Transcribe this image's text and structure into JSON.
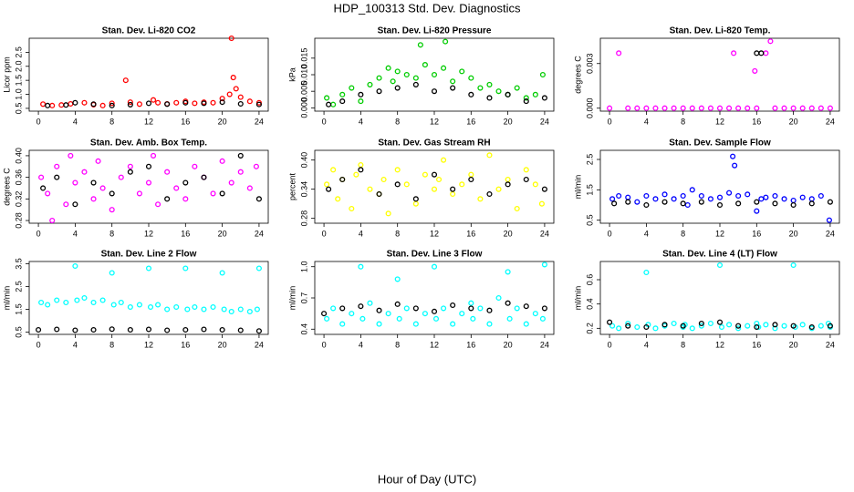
{
  "title": "HDP_100313  Std. Dev. Diagnostics",
  "xlabel": "Hour of Day (UTC)",
  "chart_data": [
    {
      "type": "scatter",
      "title": "Stan. Dev. Li-820 CO2",
      "ylabel": "Licor ppm",
      "xlim": [
        -1,
        25
      ],
      "xticks": [
        0,
        4,
        8,
        12,
        16,
        20,
        24
      ],
      "ylim": [
        0.4,
        3.0
      ],
      "yticks": [
        0.5,
        {
          "value": 1,
          "label": "1.0"
        },
        1.5,
        {
          "value": 2,
          "label": "2.0"
        },
        2.5
      ],
      "series": [
        {
          "color": "#ff0000",
          "x": [
            0.5,
            1.5,
            2.5,
            3.5,
            5,
            6,
            7,
            8,
            9.5,
            10,
            11,
            12.5,
            13,
            14,
            15,
            16,
            17,
            18,
            19,
            20,
            20.8,
            21,
            21.2,
            21.5,
            22,
            23,
            24
          ],
          "values": [
            0.65,
            0.6,
            0.62,
            0.66,
            0.7,
            0.63,
            0.6,
            0.68,
            1.5,
            0.72,
            0.65,
            0.8,
            0.7,
            0.66,
            0.7,
            0.75,
            0.68,
            0.72,
            0.7,
            0.85,
            1.0,
            3.0,
            1.6,
            1.2,
            0.9,
            0.75,
            0.7
          ]
        },
        {
          "color": "#000000",
          "x": [
            1,
            3,
            4,
            6,
            8,
            10,
            12,
            14,
            16,
            18,
            20,
            22,
            24
          ],
          "values": [
            0.6,
            0.62,
            0.7,
            0.65,
            0.6,
            0.63,
            0.68,
            0.65,
            0.7,
            0.68,
            0.72,
            0.66,
            0.64
          ]
        }
      ]
    },
    {
      "type": "scatter",
      "title": "Stan. Dev. Li-820 Pressure",
      "ylabel": "kPa",
      "xlim": [
        -1,
        25
      ],
      "xticks": [
        0,
        4,
        8,
        12,
        16,
        20,
        24
      ],
      "ylim": [
        -0.001,
        0.021
      ],
      "yticks": [
        {
          "value": 0,
          "label": "0.000"
        },
        0.005,
        {
          "value": 0.01,
          "label": "0.010"
        },
        0.015
      ],
      "series": [
        {
          "color": "#00cc00",
          "x": [
            0.3,
            1,
            2,
            3,
            4,
            5,
            6,
            7,
            7.5,
            8,
            9,
            10,
            10.5,
            11,
            12,
            13,
            13.2,
            14,
            15,
            16,
            17,
            18,
            19,
            20,
            21,
            22,
            23,
            23.8
          ],
          "values": [
            0.003,
            0.001,
            0.004,
            0.006,
            0.002,
            0.007,
            0.009,
            0.012,
            0.008,
            0.011,
            0.01,
            0.009,
            0.019,
            0.013,
            0.01,
            0.012,
            0.02,
            0.008,
            0.011,
            0.009,
            0.006,
            0.007,
            0.005,
            0.004,
            0.006,
            0.003,
            0.004,
            0.01
          ]
        },
        {
          "color": "#000000",
          "x": [
            0.5,
            2,
            4,
            6,
            8,
            10,
            12,
            14,
            16,
            18,
            20,
            22,
            24
          ],
          "values": [
            0.001,
            0.002,
            0.004,
            0.005,
            0.006,
            0.007,
            0.005,
            0.006,
            0.004,
            0.003,
            0.004,
            0.002,
            0.003
          ]
        }
      ]
    },
    {
      "type": "scatter",
      "title": "Stan. Dev. Li-820 Temp.",
      "ylabel": "degrees C",
      "xlim": [
        -1,
        25
      ],
      "xticks": [
        0,
        4,
        8,
        12,
        16,
        20,
        24
      ],
      "ylim": [
        -0.0002,
        0.0047
      ],
      "yticks": [
        {
          "value": 0,
          "label": "0.000"
        },
        0.003
      ],
      "series": [
        {
          "color": "#ff00ff",
          "x": [
            0,
            1,
            2,
            3,
            4,
            5,
            6,
            7,
            8,
            9,
            10,
            11,
            12,
            13,
            13.5,
            14,
            15,
            15.8,
            16,
            17,
            17.5,
            18,
            19,
            20,
            21,
            22,
            23,
            24
          ],
          "values": [
            0,
            0.0037,
            0,
            0,
            0,
            0,
            0,
            0,
            0,
            0,
            0,
            0,
            0,
            0,
            0.0037,
            0,
            0,
            0.0025,
            0,
            0.0037,
            0.0045,
            0,
            0,
            0,
            0,
            0,
            0,
            0
          ]
        },
        {
          "color": "#000000",
          "x": [
            16,
            16.5
          ],
          "values": [
            0.0037,
            0.0037
          ]
        }
      ]
    },
    {
      "type": "scatter",
      "title": "Stan. Dev. Amb. Box Temp.",
      "ylabel": "degrees C",
      "xlim": [
        -1,
        25
      ],
      "xticks": [
        0,
        4,
        8,
        12,
        16,
        20,
        24
      ],
      "ylim": [
        0.275,
        0.41
      ],
      "yticks": [
        0.28,
        0.32,
        0.36,
        {
          "value": 0.4,
          "label": "0.40"
        }
      ],
      "series": [
        {
          "color": "#ff00ff",
          "x": [
            0.3,
            1,
            1.5,
            2,
            3,
            3.5,
            4,
            5,
            6,
            6.5,
            7,
            8,
            9,
            10,
            11,
            12,
            12.5,
            13,
            14,
            15,
            16,
            17,
            18,
            19,
            20,
            21,
            22,
            23,
            23.7
          ],
          "values": [
            0.36,
            0.33,
            0.28,
            0.38,
            0.31,
            0.4,
            0.35,
            0.37,
            0.32,
            0.39,
            0.34,
            0.3,
            0.36,
            0.38,
            0.33,
            0.35,
            0.4,
            0.31,
            0.37,
            0.34,
            0.32,
            0.38,
            0.36,
            0.33,
            0.39,
            0.35,
            0.37,
            0.34,
            0.38
          ]
        },
        {
          "color": "#000000",
          "x": [
            0.5,
            2,
            4,
            6,
            8,
            10,
            12,
            14,
            16,
            18,
            20,
            22,
            24
          ],
          "values": [
            0.34,
            0.36,
            0.31,
            0.35,
            0.33,
            0.37,
            0.38,
            0.32,
            0.35,
            0.36,
            0.33,
            0.4,
            0.32
          ]
        }
      ]
    },
    {
      "type": "scatter",
      "title": "Stan. Dev. Gas Stream RH",
      "ylabel": "percent",
      "xlim": [
        -1,
        25
      ],
      "xticks": [
        0,
        4,
        8,
        12,
        16,
        20,
        24
      ],
      "ylim": [
        0.27,
        0.42
      ],
      "yticks": [
        0.28,
        0.34,
        {
          "value": 0.4,
          "label": "0.40"
        }
      ],
      "series": [
        {
          "color": "#ffff00",
          "x": [
            0.3,
            1,
            1.5,
            2,
            3,
            3.5,
            4,
            5,
            6,
            6.5,
            7,
            8,
            9,
            10,
            11,
            12,
            12.5,
            13,
            14,
            15,
            16,
            17,
            18,
            19,
            20,
            21,
            22,
            23,
            23.7
          ],
          "values": [
            0.35,
            0.38,
            0.32,
            0.36,
            0.3,
            0.37,
            0.39,
            0.34,
            0.33,
            0.36,
            0.29,
            0.38,
            0.35,
            0.31,
            0.37,
            0.34,
            0.36,
            0.4,
            0.33,
            0.35,
            0.37,
            0.32,
            0.41,
            0.34,
            0.36,
            0.3,
            0.38,
            0.35,
            0.31
          ]
        },
        {
          "color": "#000000",
          "x": [
            0.5,
            2,
            4,
            6,
            8,
            10,
            12,
            14,
            16,
            18,
            20,
            22,
            24
          ],
          "values": [
            0.34,
            0.36,
            0.38,
            0.33,
            0.35,
            0.32,
            0.37,
            0.34,
            0.36,
            0.33,
            0.35,
            0.36,
            0.34
          ]
        }
      ]
    },
    {
      "type": "scatter",
      "title": "Stan. Dev. Sample Flow",
      "ylabel": "ml/min",
      "xlim": [
        -1,
        25
      ],
      "xticks": [
        0,
        4,
        8,
        12,
        16,
        20,
        24
      ],
      "ylim": [
        0.4,
        2.8
      ],
      "yticks": [
        0.5,
        1.5,
        2.5
      ],
      "series": [
        {
          "color": "#0000ff",
          "x": [
            0.3,
            1,
            2,
            3,
            4,
            5,
            6,
            7,
            8,
            8.5,
            9,
            10,
            11,
            12,
            13,
            13.4,
            13.6,
            14,
            15,
            16,
            16.5,
            17,
            18,
            19,
            20,
            21,
            22,
            23,
            23.9
          ],
          "values": [
            1.2,
            1.3,
            1.25,
            1.1,
            1.3,
            1.2,
            1.35,
            1.2,
            1.3,
            1.0,
            1.5,
            1.3,
            1.2,
            1.25,
            1.4,
            2.6,
            2.3,
            1.3,
            1.35,
            0.8,
            1.2,
            1.25,
            1.3,
            1.2,
            1.15,
            1.25,
            1.2,
            1.3,
            0.5
          ]
        },
        {
          "color": "#000000",
          "x": [
            0.5,
            2,
            4,
            6,
            8,
            10,
            12,
            14,
            16,
            18,
            20,
            22,
            24
          ],
          "values": [
            1.05,
            1.1,
            1.0,
            1.1,
            1.05,
            1.1,
            1.0,
            1.05,
            1.1,
            1.05,
            1.0,
            1.05,
            1.1
          ]
        }
      ]
    },
    {
      "type": "scatter",
      "title": "Stan. Dev. Line 2 Flow",
      "ylabel": "ml/min",
      "xlim": [
        -1,
        25
      ],
      "xticks": [
        0,
        4,
        8,
        12,
        16,
        20,
        24
      ],
      "ylim": [
        0.4,
        3.6
      ],
      "yticks": [
        0.5,
        1.5,
        2.5,
        3.5
      ],
      "series": [
        {
          "color": "#00ffff",
          "x": [
            0.3,
            1,
            2,
            3,
            4,
            4.2,
            5,
            6,
            7,
            8,
            8.2,
            9,
            10,
            11,
            12,
            12.2,
            13,
            14,
            15,
            16,
            16.2,
            17,
            18,
            19,
            20,
            20.2,
            21,
            22,
            23,
            23.8,
            24
          ],
          "values": [
            1.8,
            1.7,
            1.9,
            1.8,
            3.4,
            1.9,
            2.0,
            1.8,
            1.9,
            3.1,
            1.7,
            1.8,
            1.6,
            1.7,
            3.3,
            1.6,
            1.7,
            1.5,
            1.6,
            3.3,
            1.5,
            1.6,
            1.5,
            1.6,
            3.1,
            1.5,
            1.4,
            1.5,
            1.4,
            1.5,
            3.3
          ]
        },
        {
          "color": "#000000",
          "x": [
            0,
            2,
            4,
            6,
            8,
            10,
            12,
            14,
            16,
            18,
            20,
            22,
            24
          ],
          "values": [
            0.6,
            0.62,
            0.58,
            0.6,
            0.63,
            0.6,
            0.62,
            0.58,
            0.6,
            0.62,
            0.6,
            0.58,
            0.55
          ]
        }
      ]
    },
    {
      "type": "scatter",
      "title": "Stan. Dev. Line 3 Flow",
      "ylabel": "ml/min",
      "xlim": [
        -1,
        25
      ],
      "xticks": [
        0,
        4,
        8,
        12,
        16,
        20,
        24
      ],
      "ylim": [
        0.35,
        1.05
      ],
      "yticks": [
        0.4,
        0.7,
        {
          "value": 1,
          "label": "1.0"
        }
      ],
      "series": [
        {
          "color": "#00ffff",
          "x": [
            0.3,
            1,
            2,
            3,
            4,
            4.2,
            5,
            6,
            7,
            8,
            8.2,
            9,
            10,
            11,
            12,
            12.2,
            13,
            14,
            15,
            16,
            16.2,
            17,
            18,
            19,
            20,
            20.2,
            21,
            22,
            23,
            23.8,
            24
          ],
          "values": [
            0.5,
            0.6,
            0.45,
            0.55,
            1.0,
            0.5,
            0.65,
            0.45,
            0.55,
            0.88,
            0.5,
            0.6,
            0.45,
            0.55,
            1.0,
            0.5,
            0.6,
            0.45,
            0.55,
            0.65,
            0.5,
            0.6,
            0.45,
            0.7,
            0.95,
            0.5,
            0.6,
            0.45,
            0.55,
            0.5,
            1.02
          ]
        },
        {
          "color": "#000000",
          "x": [
            0,
            2,
            4,
            6,
            8,
            10,
            12,
            14,
            16,
            18,
            20,
            22,
            24
          ],
          "values": [
            0.55,
            0.6,
            0.62,
            0.58,
            0.64,
            0.6,
            0.57,
            0.63,
            0.6,
            0.58,
            0.65,
            0.62,
            0.6
          ]
        }
      ]
    },
    {
      "type": "scatter",
      "title": "Stan. Dev. Line 4 (LT) Flow",
      "ylabel": "ml/min",
      "xlim": [
        -1,
        25
      ],
      "xticks": [
        0,
        4,
        8,
        12,
        16,
        20,
        24
      ],
      "ylim": [
        0.15,
        0.75
      ],
      "yticks": [
        0.2,
        0.4,
        0.6
      ],
      "series": [
        {
          "color": "#00ffff",
          "x": [
            0.3,
            1,
            2,
            3,
            4,
            4.2,
            5,
            6,
            7,
            8,
            8.2,
            9,
            10,
            11,
            12,
            12.2,
            13,
            14,
            15,
            16,
            16.2,
            17,
            18,
            19,
            20,
            20.2,
            21,
            22,
            23,
            23.8,
            24
          ],
          "values": [
            0.22,
            0.2,
            0.24,
            0.21,
            0.66,
            0.23,
            0.2,
            0.22,
            0.24,
            0.21,
            0.23,
            0.2,
            0.22,
            0.24,
            0.72,
            0.21,
            0.23,
            0.2,
            0.22,
            0.24,
            0.21,
            0.23,
            0.2,
            0.22,
            0.72,
            0.21,
            0.23,
            0.2,
            0.22,
            0.24,
            0.21
          ]
        },
        {
          "color": "#000000",
          "x": [
            0,
            2,
            4,
            6,
            8,
            10,
            12,
            14,
            16,
            18,
            20,
            22,
            24
          ],
          "values": [
            0.25,
            0.22,
            0.21,
            0.23,
            0.22,
            0.24,
            0.25,
            0.22,
            0.21,
            0.23,
            0.22,
            0.21,
            0.22
          ]
        }
      ]
    }
  ]
}
